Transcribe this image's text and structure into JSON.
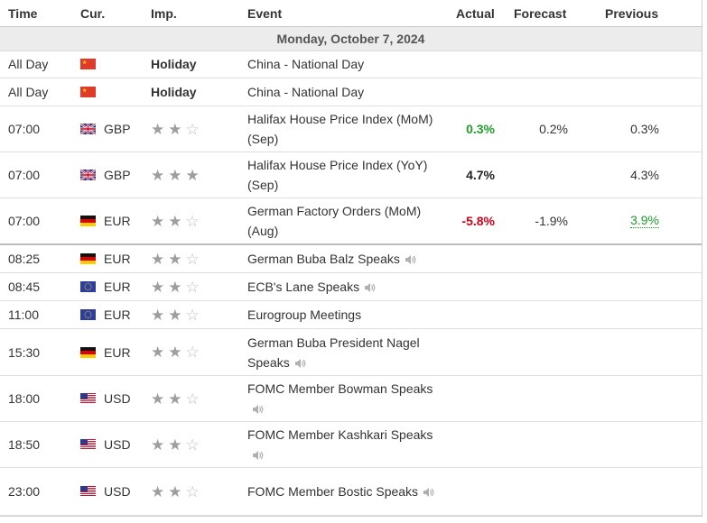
{
  "header": {
    "time": "Time",
    "cur": "Cur.",
    "imp": "Imp.",
    "event": "Event",
    "actual": "Actual",
    "forecast": "Forecast",
    "previous": "Previous"
  },
  "date_label": "Monday, October 7, 2024",
  "colors": {
    "positive": "#1f9d2a",
    "negative": "#d0021b"
  },
  "rows": [
    {
      "time": "All Day",
      "flag": "CN",
      "cur": "",
      "imp": "Holiday",
      "event": "China - National Day",
      "speaks": false,
      "actual": "",
      "actual_tone": "",
      "forecast": "",
      "previous": "",
      "previous_tone": ""
    },
    {
      "time": "All Day",
      "flag": "CN",
      "cur": "",
      "imp": "Holiday",
      "event": "China - National Day",
      "speaks": false,
      "actual": "",
      "actual_tone": "",
      "forecast": "",
      "previous": "",
      "previous_tone": ""
    },
    {
      "time": "07:00",
      "flag": "GB",
      "cur": "GBP",
      "stars": 2,
      "event": "Halifax House Price Index (MoM) (Sep)",
      "speaks": false,
      "actual": "0.3%",
      "actual_tone": "positive",
      "forecast": "0.2%",
      "previous": "0.3%",
      "previous_tone": ""
    },
    {
      "time": "07:00",
      "flag": "GB",
      "cur": "GBP",
      "stars": 3,
      "event": "Halifax House Price Index (YoY) (Sep)",
      "speaks": false,
      "actual": "4.7%",
      "actual_tone": "neutral",
      "forecast": "",
      "previous": "4.3%",
      "previous_tone": ""
    },
    {
      "time": "07:00",
      "flag": "DE",
      "cur": "EUR",
      "stars": 2,
      "event": "German Factory Orders (MoM) (Aug)",
      "speaks": false,
      "actual": "-5.8%",
      "actual_tone": "negative",
      "forecast": "-1.9%",
      "previous": "3.9%",
      "previous_tone": "revised-up"
    },
    {
      "time": "08:25",
      "flag": "DE",
      "cur": "EUR",
      "stars": 2,
      "event": "German Buba Balz Speaks",
      "speaks": true,
      "actual": "",
      "actual_tone": "",
      "forecast": "",
      "previous": "",
      "previous_tone": ""
    },
    {
      "time": "08:45",
      "flag": "EU",
      "cur": "EUR",
      "stars": 2,
      "event": "ECB's Lane Speaks",
      "speaks": true,
      "actual": "",
      "actual_tone": "",
      "forecast": "",
      "previous": "",
      "previous_tone": ""
    },
    {
      "time": "11:00",
      "flag": "EU",
      "cur": "EUR",
      "stars": 2,
      "event": "Eurogroup Meetings",
      "speaks": false,
      "actual": "",
      "actual_tone": "",
      "forecast": "",
      "previous": "",
      "previous_tone": ""
    },
    {
      "time": "15:30",
      "flag": "DE",
      "cur": "EUR",
      "stars": 2,
      "event": "German Buba President Nagel Speaks",
      "speaks": true,
      "actual": "",
      "actual_tone": "",
      "forecast": "",
      "previous": "",
      "previous_tone": ""
    },
    {
      "time": "18:00",
      "flag": "US",
      "cur": "USD",
      "stars": 2,
      "event": "FOMC Member Bowman Speaks",
      "speaks": true,
      "actual": "",
      "actual_tone": "",
      "forecast": "",
      "previous": "",
      "previous_tone": ""
    },
    {
      "time": "18:50",
      "flag": "US",
      "cur": "USD",
      "stars": 2,
      "event": "FOMC Member Kashkari Speaks",
      "speaks": true,
      "actual": "",
      "actual_tone": "",
      "forecast": "",
      "previous": "",
      "previous_tone": ""
    },
    {
      "time": "23:00",
      "flag": "US",
      "cur": "USD",
      "stars": 2,
      "event": "FOMC Member Bostic Speaks",
      "speaks": true,
      "actual": "",
      "actual_tone": "",
      "forecast": "",
      "previous": "",
      "previous_tone": ""
    }
  ]
}
